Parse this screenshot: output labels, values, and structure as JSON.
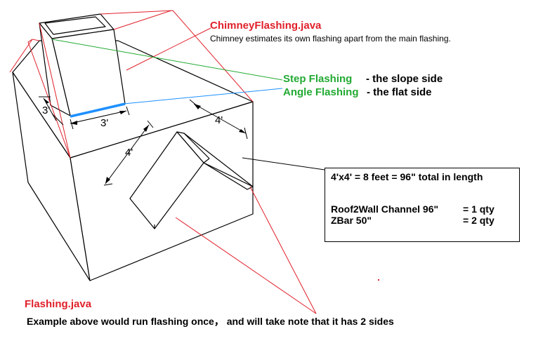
{
  "chimney_label": {
    "title": "ChimneyFlashing.java",
    "note": "Chimney estimates its own flashing apart from the main flashing."
  },
  "callouts": {
    "step": {
      "name": "Step Flashing",
      "desc": "- the slope side"
    },
    "angle": {
      "name": "Angle Flashing",
      "desc": "- the flat side"
    }
  },
  "dimensions": {
    "chimney_height": "3'",
    "chimney_width": "3'",
    "dormer_front": "4'",
    "dormer_side": "4'"
  },
  "calc_box": {
    "line1": "4'x4' = 8 feet = 96\" total in length",
    "row2_label": "Roof2Wall Channel 96\"",
    "row2_value": "= 1 qty",
    "row3_label": "ZBar 50\"",
    "row3_value": "= 2 qty"
  },
  "flashing_label": {
    "title": "Flashing.java",
    "note": "Example above would run flashing once， and will take note that it has 2 sides"
  },
  "colors": {
    "red": "#e0202a",
    "green": "#22aa33",
    "blue": "#1e90ff",
    "line": "#000000"
  }
}
